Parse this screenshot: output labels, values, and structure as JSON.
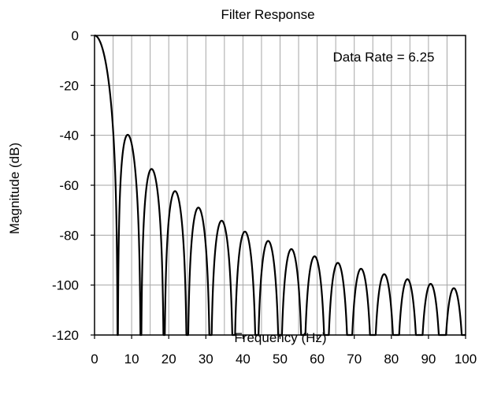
{
  "chart_data": {
    "type": "line",
    "title": "Filter Response",
    "xlabel": "Frequency (Hz)",
    "ylabel": "Magnitude (dB)",
    "annotation": "Data Rate = 6.25",
    "xlim": [
      0,
      100
    ],
    "ylim": [
      -120,
      0
    ],
    "x_ticks": [
      0,
      10,
      20,
      30,
      40,
      50,
      60,
      70,
      80,
      90,
      100
    ],
    "y_ticks": [
      0,
      -20,
      -40,
      -60,
      -80,
      -100,
      -120
    ],
    "x_minor_grid_step": 5,
    "grid": true,
    "legend": "none",
    "line_color": "#000000",
    "grid_color": "#a6a6a6",
    "response_model": {
      "kind": "sinc^3",
      "null_spacing_hz": 6.25
    },
    "series": [
      {
        "lobes": [
          {
            "null_start": 0,
            "null_end": 6.25,
            "peak_freq": 0,
            "peak_db": 0
          },
          {
            "null_start": 6.25,
            "null_end": 12.5,
            "peak_freq": 9,
            "peak_db": -40
          },
          {
            "null_start": 12.5,
            "null_end": 18.75,
            "peak_freq": 15.5,
            "peak_db": -53.5
          },
          {
            "null_start": 18.75,
            "null_end": 25,
            "peak_freq": 21.8,
            "peak_db": -62.5
          },
          {
            "null_start": 25,
            "null_end": 31.25,
            "peak_freq": 28.1,
            "peak_db": -69
          },
          {
            "null_start": 31.25,
            "null_end": 37.5,
            "peak_freq": 34.4,
            "peak_db": -74.5
          },
          {
            "null_start": 37.5,
            "null_end": 43.75,
            "peak_freq": 40.6,
            "peak_db": -78.5
          },
          {
            "null_start": 43.75,
            "null_end": 50,
            "peak_freq": 46.9,
            "peak_db": -82.5
          },
          {
            "null_start": 50,
            "null_end": 56.25,
            "peak_freq": 53.1,
            "peak_db": -86
          },
          {
            "null_start": 56.25,
            "null_end": 62.5,
            "peak_freq": 59.4,
            "peak_db": -88.5
          },
          {
            "null_start": 62.5,
            "null_end": 68.75,
            "peak_freq": 65.6,
            "peak_db": -91
          },
          {
            "null_start": 68.75,
            "null_end": 75,
            "peak_freq": 71.9,
            "peak_db": -93.5
          },
          {
            "null_start": 75,
            "null_end": 81.25,
            "peak_freq": 78.1,
            "peak_db": -95.5
          },
          {
            "null_start": 81.25,
            "null_end": 87.5,
            "peak_freq": 84.4,
            "peak_db": -97.5
          },
          {
            "null_start": 87.5,
            "null_end": 93.75,
            "peak_freq": 90.6,
            "peak_db": -99.5
          },
          {
            "null_start": 93.75,
            "null_end": 100,
            "peak_freq": 96.9,
            "peak_db": -101.5
          }
        ]
      }
    ]
  }
}
